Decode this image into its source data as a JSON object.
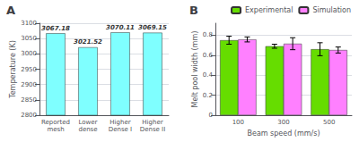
{
  "chart_data": [
    {
      "type": "bar",
      "title": "A",
      "categories": [
        "Reported\nmesh",
        "Lower\ndense",
        "Higher\nDense I",
        "Higher\nDense II"
      ],
      "values": [
        3067.18,
        3021.52,
        3070.11,
        3069.15
      ],
      "color": "#7fffff",
      "ylabel": "Temperature (K)",
      "ylim": [
        2800,
        3100
      ],
      "yticks": [
        2800,
        2850,
        2900,
        2950,
        3000,
        3050,
        3100
      ],
      "data_labels": true
    },
    {
      "type": "bar",
      "title": "B",
      "categories": [
        "100",
        "300",
        "500"
      ],
      "xlabel": "Beam speed (mm/s)",
      "ylabel": "Melt pool width (mm)",
      "ylim": [
        0.0,
        0.92
      ],
      "yticks": [
        0.0,
        0.2,
        0.4,
        0.6,
        0.8
      ],
      "legend": "upper right",
      "series": [
        {
          "name": "Experimental",
          "color": "#66dd00",
          "values": [
            0.75,
            0.69,
            0.66
          ],
          "errors": [
            0.04,
            0.02,
            0.065
          ]
        },
        {
          "name": "Simulation",
          "color": "#ff80ff",
          "values": [
            0.758,
            0.715,
            0.652
          ],
          "errors": [
            0.025,
            0.06,
            0.03
          ]
        }
      ]
    }
  ]
}
